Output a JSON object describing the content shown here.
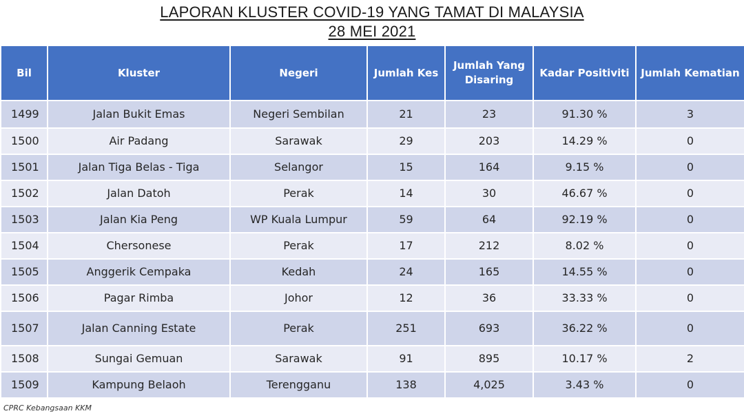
{
  "chart_data": {
    "type": "table",
    "title": "LAPORAN KLUSTER COVID-19 YANG TAMAT DI MALAYSIA",
    "subtitle": "28 MEI 2021",
    "columns": [
      "Bil",
      "Kluster",
      "Negeri",
      "Jumlah Kes",
      "Jumlah Yang Disaring",
      "Kadar Positiviti",
      "Jumlah Kematian"
    ],
    "rows": [
      [
        "1499",
        "Jalan Bukit Emas",
        "Negeri Sembilan",
        "21",
        "23",
        "91.30 %",
        "3"
      ],
      [
        "1500",
        "Air Padang",
        "Sarawak",
        "29",
        "203",
        "14.29 %",
        "0"
      ],
      [
        "1501",
        "Jalan Tiga Belas - Tiga",
        "Selangor",
        "15",
        "164",
        "9.15 %",
        "0"
      ],
      [
        "1502",
        "Jalan Datoh",
        "Perak",
        "14",
        "30",
        "46.67 %",
        "0"
      ],
      [
        "1503",
        "Jalan Kia Peng",
        "WP Kuala Lumpur",
        "59",
        "64",
        "92.19 %",
        "0"
      ],
      [
        "1504",
        "Chersonese",
        "Perak",
        "17",
        "212",
        "8.02 %",
        "0"
      ],
      [
        "1505",
        "Anggerik Cempaka",
        "Kedah",
        "24",
        "165",
        "14.55 %",
        "0"
      ],
      [
        "1506",
        "Pagar Rimba",
        "Johor",
        "12",
        "36",
        "33.33 %",
        "0"
      ],
      [
        "1507",
        "Jalan Canning Estate",
        "Perak",
        "251",
        "693",
        "36.22 %",
        "0"
      ],
      [
        "1508",
        "Sungai Gemuan",
        "Sarawak",
        "91",
        "895",
        "10.17 %",
        "2"
      ],
      [
        "1509",
        "Kampung Belaoh",
        "Terengganu",
        "138",
        "4,025",
        "3.43 %",
        "0"
      ]
    ],
    "source": "CPRC Kebangsaan KKM",
    "colors": {
      "header_bg": "#4472c4",
      "header_text": "#ffffff",
      "row_dark": "#cfd5ea",
      "row_light": "#e9ebf5"
    }
  }
}
